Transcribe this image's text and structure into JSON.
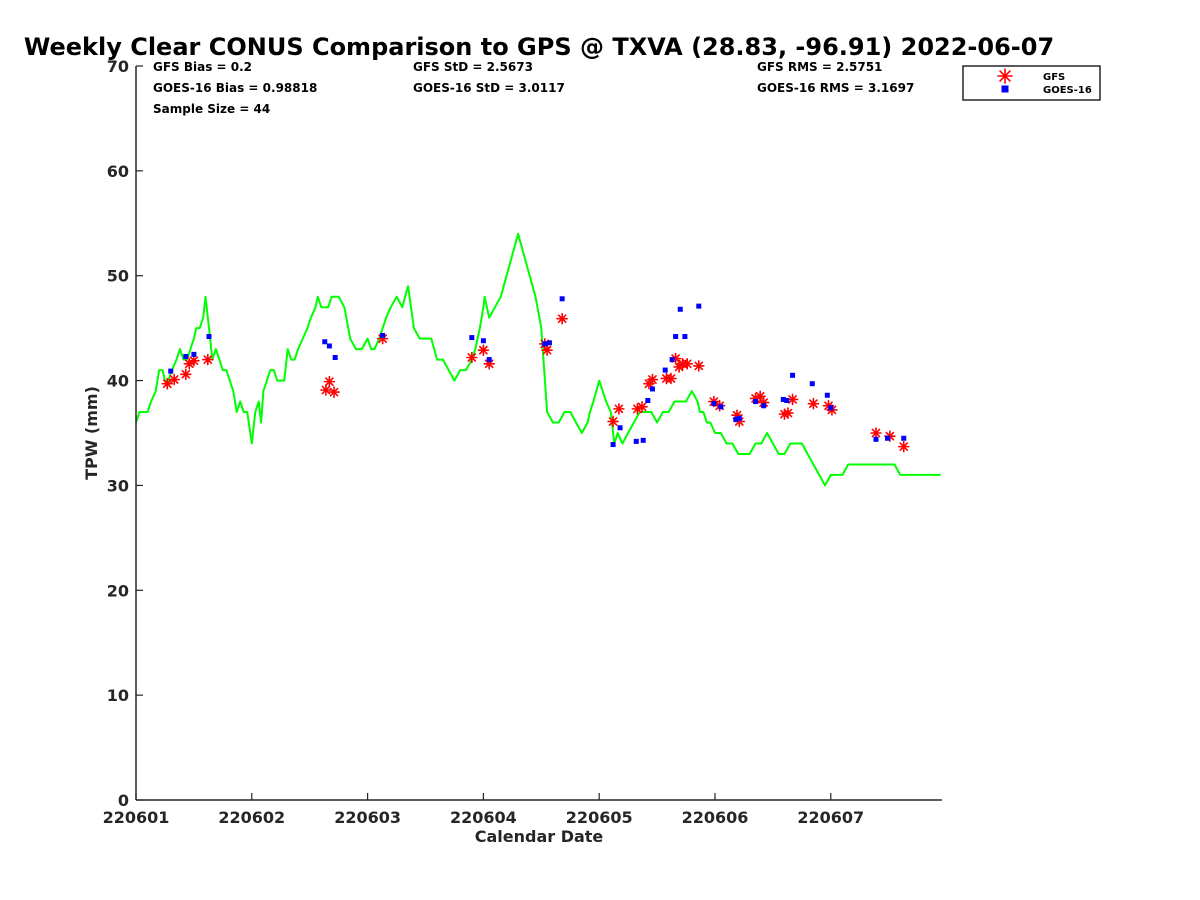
{
  "chart_data": {
    "type": "scatter",
    "title": "Weekly Clear CONUS Comparison to GPS @ TXVA (28.83, -96.91) 2022-06-07",
    "xlabel": "Calendar Date",
    "ylabel": "TPW (mm)",
    "xlim": [
      0,
      7
    ],
    "ylim": [
      0,
      70
    ],
    "x_unit": "days since 220601",
    "x_ticks": [
      {
        "value": 0,
        "label": "220601"
      },
      {
        "value": 1,
        "label": "220602"
      },
      {
        "value": 2,
        "label": "220603"
      },
      {
        "value": 3,
        "label": "220604"
      },
      {
        "value": 4,
        "label": "220605"
      },
      {
        "value": 5,
        "label": "220606"
      },
      {
        "value": 6,
        "label": "220607"
      }
    ],
    "y_ticks": [
      {
        "value": 0,
        "label": "0"
      },
      {
        "value": 10,
        "label": "10"
      },
      {
        "value": 20,
        "label": "20"
      },
      {
        "value": 30,
        "label": "30"
      },
      {
        "value": 40,
        "label": "40"
      },
      {
        "value": 50,
        "label": "50"
      },
      {
        "value": 60,
        "label": "60"
      },
      {
        "value": 70,
        "label": "70"
      }
    ],
    "stats": {
      "gfs_bias": "GFS Bias = 0.2",
      "goes_bias": "GOES-16 Bias = 0.98818",
      "sample_size": "Sample Size = 44",
      "gfs_std": "GFS StD = 2.5673",
      "goes_std": "GOES-16 StD = 3.0117",
      "gfs_rms": "GFS RMS = 2.5751",
      "goes_rms": "GOES-16 RMS = 3.1697"
    },
    "legend": {
      "position": "top-right",
      "entries": [
        {
          "label": "GFS",
          "color": "#ff0000",
          "marker": "asterisk"
        },
        {
          "label": "GOES-16",
          "color": "#0000ff",
          "marker": "square"
        }
      ]
    },
    "colors": {
      "gps": "#00ff00",
      "gfs": "#ff0000",
      "goes": "#0000ff",
      "axis": "#262626"
    },
    "series": [
      {
        "name": "GPS",
        "kind": "line",
        "x": [
          0,
          0.03,
          0.1,
          0.13,
          0.17,
          0.2,
          0.23,
          0.25,
          0.28,
          0.31,
          0.35,
          0.38,
          0.41,
          0.44,
          0.47,
          0.5,
          0.52,
          0.55,
          0.58,
          0.6,
          0.63,
          0.66,
          0.69,
          0.72,
          0.75,
          0.78,
          0.81,
          0.84,
          0.87,
          0.9,
          0.93,
          0.96,
          1,
          1.03,
          1.06,
          1.08,
          1.1,
          1.13,
          1.16,
          1.19,
          1.22,
          1.25,
          1.28,
          1.31,
          1.34,
          1.37,
          1.4,
          1.44,
          1.48,
          1.51,
          1.55,
          1.57,
          1.6,
          1.63,
          1.66,
          1.69,
          1.72,
          1.75,
          1.8,
          1.85,
          1.9,
          1.95,
          2,
          2.03,
          2.06,
          2.1,
          2.13,
          2.16,
          2.2,
          2.25,
          2.3,
          2.35,
          2.4,
          2.45,
          2.5,
          2.55,
          2.6,
          2.65,
          2.7,
          2.75,
          2.8,
          2.85,
          2.9,
          2.93,
          2.95,
          2.97,
          3,
          3.01,
          3.03,
          3.05,
          3.1,
          3.15,
          3.2,
          3.3,
          3.45,
          3.5,
          3.55,
          3.6,
          3.65,
          3.7,
          3.75,
          3.8,
          3.85,
          3.9,
          3.92,
          3.95,
          4,
          4.03,
          4.06,
          4.1,
          4.13,
          4.16,
          4.2,
          4.25,
          4.3,
          4.35,
          4.4,
          4.45,
          4.5,
          4.55,
          4.6,
          4.65,
          4.7,
          4.75,
          4.8,
          4.85,
          4.87,
          4.9,
          4.93,
          4.96,
          5,
          5.05,
          5.1,
          5.15,
          5.2,
          5.25,
          5.3,
          5.35,
          5.4,
          5.45,
          5.5,
          5.55,
          5.6,
          5.65,
          5.7,
          5.75,
          5.8,
          5.85,
          5.9,
          5.95,
          6,
          6.05,
          6.1,
          6.15,
          6.2,
          6.25,
          6.3,
          6.35,
          6.4,
          6.45,
          6.5,
          6.55,
          6.6,
          6.62,
          6.65,
          6.7,
          6.75,
          6.8,
          6.85,
          6.9,
          6.95
        ],
        "y": [
          36,
          37,
          37,
          38,
          39,
          41,
          41,
          40,
          40,
          41,
          42,
          43,
          42,
          42,
          43,
          44,
          45,
          45,
          46,
          48,
          45,
          42,
          43,
          42,
          41,
          41,
          40,
          39,
          37,
          38,
          37,
          37,
          34,
          37,
          38,
          36,
          39,
          40,
          41,
          41,
          40,
          40,
          40,
          43,
          42,
          42,
          43,
          44,
          45,
          46,
          47,
          48,
          47,
          47,
          47,
          48,
          48,
          48,
          47,
          44,
          43,
          43,
          44,
          43,
          43,
          44,
          45,
          46,
          47,
          48,
          47,
          49,
          45,
          44,
          44,
          44,
          42,
          42,
          41,
          40,
          41,
          41,
          42,
          43,
          44,
          45,
          47,
          48,
          47,
          46,
          47,
          48,
          50,
          54,
          48,
          45,
          37,
          36,
          36,
          37,
          37,
          36,
          35,
          36,
          37,
          38,
          40,
          39,
          38,
          37,
          34,
          35,
          34,
          35,
          36,
          37,
          37,
          37,
          36,
          37,
          37,
          38,
          38,
          38,
          39,
          38,
          37,
          37,
          36,
          36,
          35,
          35,
          34,
          34,
          33,
          33,
          33,
          34,
          34,
          35,
          34,
          33,
          33,
          34,
          34,
          34,
          33,
          32,
          31,
          30,
          31,
          31,
          31,
          32,
          32,
          32,
          32,
          32,
          32,
          32,
          32,
          32,
          31,
          31,
          31,
          31,
          31,
          31,
          31,
          31,
          31
        ],
        "color": "#00ff00"
      },
      {
        "name": "GFS",
        "kind": "scatter",
        "marker": "asterisk",
        "x": [
          0.27,
          0.33,
          0.43,
          0.46,
          0.5,
          0.62,
          1.64,
          1.67,
          1.71,
          2.13,
          2.9,
          3.0,
          3.05,
          3.53,
          3.55,
          3.68,
          4.12,
          4.17,
          4.33,
          4.37,
          4.43,
          4.46,
          4.58,
          4.62,
          4.66,
          4.69,
          4.72,
          4.76,
          4.86,
          4.99,
          5.04,
          5.19,
          5.21,
          5.35,
          5.39,
          5.42,
          5.6,
          5.63,
          5.67,
          5.85,
          5.98,
          6.01,
          6.39,
          6.51,
          6.63
        ],
        "y": [
          39.7,
          40.1,
          40.6,
          41.6,
          41.9,
          42,
          39.1,
          39.9,
          38.9,
          44,
          42.2,
          42.9,
          41.6,
          43.5,
          42.9,
          45.9,
          36.1,
          37.3,
          37.3,
          37.5,
          39.7,
          40.1,
          40.2,
          40.2,
          42.1,
          41.3,
          41.6,
          41.6,
          41.4,
          38,
          37.6,
          36.7,
          36.1,
          38.3,
          38.5,
          37.9,
          36.8,
          36.9,
          38.2,
          37.8,
          37.6,
          37.2,
          35,
          34.7,
          33.7
        ],
        "color": "#ff0000"
      },
      {
        "name": "GOES-16",
        "kind": "scatter",
        "marker": "square",
        "x": [
          0.3,
          0.43,
          0.5,
          0.63,
          1.63,
          1.67,
          1.72,
          2.13,
          2.9,
          3.0,
          3.05,
          3.53,
          3.57,
          3.68,
          4.12,
          4.18,
          4.32,
          4.38,
          4.42,
          4.46,
          4.57,
          4.63,
          4.66,
          4.7,
          4.74,
          4.86,
          4.99,
          5.05,
          5.18,
          5.21,
          5.35,
          5.42,
          5.59,
          5.62,
          5.67,
          5.84,
          5.97,
          6.0,
          6.39,
          6.49,
          6.63
        ],
        "y": [
          40.9,
          42.3,
          42.5,
          44.2,
          43.7,
          43.3,
          42.2,
          44.3,
          44.1,
          43.8,
          42,
          43.5,
          43.6,
          47.8,
          33.9,
          35.5,
          34.2,
          34.3,
          38.1,
          39.2,
          41,
          42,
          44.2,
          46.8,
          44.2,
          47.1,
          37.8,
          37.5,
          36.3,
          36.4,
          38,
          37.6,
          38.2,
          38.1,
          40.5,
          39.7,
          38.6,
          37.4,
          34.4,
          34.5,
          34.5
        ],
        "color": "#0000ff"
      }
    ]
  }
}
